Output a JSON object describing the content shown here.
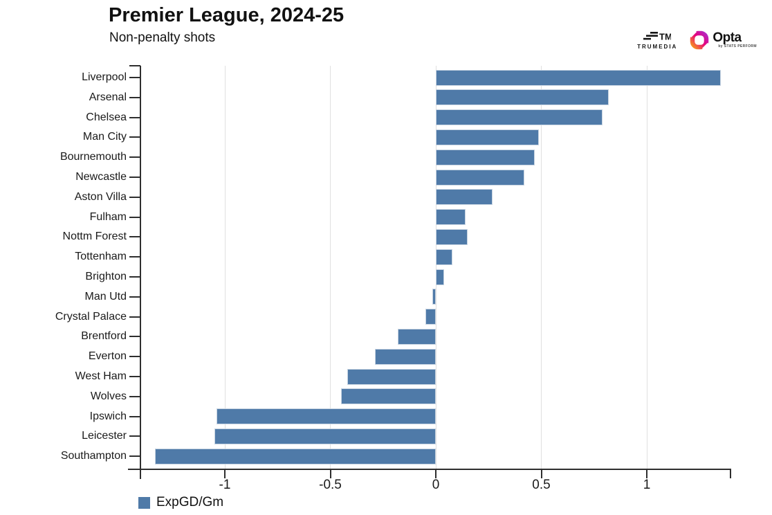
{
  "header": {
    "title": "Premier League, 2024-25",
    "subtitle": "Non-penalty shots"
  },
  "branding": {
    "trumedia_label": "TRUMEDIA",
    "opta_label": "Opta",
    "opta_sublabel": "by STATS PERFORM"
  },
  "legend": {
    "label": "ExpGD/Gm",
    "color": "#4f7aa8"
  },
  "chart_data": {
    "type": "bar",
    "orientation": "horizontal",
    "title": "Premier League, 2024-25",
    "subtitle": "Non-penalty shots",
    "series_name": "ExpGD/Gm",
    "categories": [
      "Liverpool",
      "Arsenal",
      "Chelsea",
      "Man City",
      "Bournemouth",
      "Newcastle",
      "Aston Villa",
      "Fulham",
      "Nottm Forest",
      "Tottenham",
      "Brighton",
      "Man Utd",
      "Crystal Palace",
      "Brentford",
      "Everton",
      "West Ham",
      "Wolves",
      "Ipswich",
      "Leicester",
      "Southampton"
    ],
    "values": [
      1.35,
      0.82,
      0.79,
      0.49,
      0.47,
      0.42,
      0.27,
      0.14,
      0.15,
      0.08,
      0.04,
      -0.01,
      -0.05,
      -0.18,
      -0.29,
      -0.42,
      -0.45,
      -1.04,
      -1.05,
      -1.33
    ],
    "x_tick_values": [
      -1,
      -0.5,
      0,
      0.5,
      1
    ],
    "x_tick_labels": [
      "-1",
      "-0.5",
      "0",
      "0.5",
      "1"
    ],
    "xlim": [
      -1.45,
      1.4
    ],
    "grid": true,
    "legend_position": "bottom-left",
    "bar_color": "#4f7aa8",
    "bar_border_color": "#c6d3e1",
    "axis_color": "#2e2e2e",
    "grid_color": "#e0e0e0"
  }
}
